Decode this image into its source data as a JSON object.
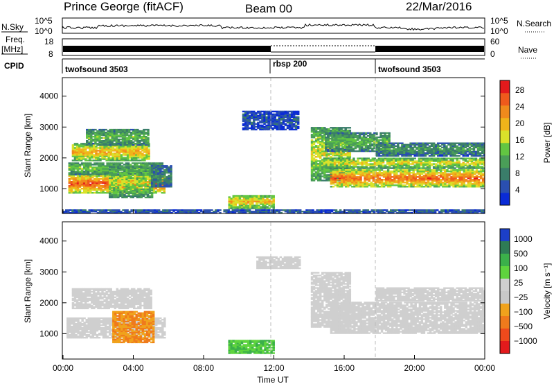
{
  "header": {
    "title": "Prince George (fitACF)",
    "beam": "Beam 00",
    "date": "22/Mar/2016"
  },
  "top_panels": {
    "nsky_label": "N.Sky",
    "nsky_ticks": [
      "10^5",
      "10^0"
    ],
    "nsearch_label": "N.Search",
    "freq_label": "Freq.",
    "freq_unit": "[MHz]",
    "freq_ticks": [
      "18",
      "8"
    ],
    "nave_label": "Nave",
    "nave_ticks": [
      "60",
      "0"
    ],
    "cpid_label": "CPID",
    "cpid_segments": [
      "twofsound 3503",
      "rbsp 200",
      "twofsound 3503"
    ]
  },
  "colors": {
    "power_scale": [
      "#0a2bd6",
      "#2a4fb0",
      "#3a7d6a",
      "#4a9e58",
      "#62c642",
      "#d9e22a",
      "#f0b41a",
      "#f08a1c",
      "#ef5a1c",
      "#e31a1c"
    ],
    "velocity_scale": [
      "#1c3fc7",
      "#2e7b55",
      "#3bb04a",
      "#5fd43e",
      "#cfcfcf",
      "#c8c8c8",
      "#f0a21c",
      "#ef7a1c",
      "#ee4a1c",
      "#e31a1c"
    ]
  },
  "chart_data": [
    {
      "type": "heatmap",
      "name": "power",
      "ylabel": "Slant Range [km]",
      "xlabel": "",
      "ylim": [
        200,
        4600
      ],
      "yticks": [
        1000,
        2000,
        3000,
        4000
      ],
      "xlim": [
        "00:00",
        "24:00"
      ],
      "xticks": [
        "00:00",
        "04:00",
        "08:00",
        "12:00",
        "16:00",
        "20:00",
        "00:00"
      ],
      "colorbar_label": "Power [dB]",
      "colorbar_ticks": [
        "28",
        "24",
        "20",
        "16",
        "12",
        "8",
        "4"
      ],
      "colorbar_range": [
        0,
        30
      ],
      "regions": [
        {
          "t0": 0.3,
          "t1": 5.8,
          "r0": 850,
          "r1": 1450,
          "level": 26
        },
        {
          "t0": 0.3,
          "t1": 5.6,
          "r0": 1450,
          "r1": 1850,
          "level": 14
        },
        {
          "t0": 0.5,
          "t1": 4.9,
          "r0": 1900,
          "r1": 2450,
          "level": 21
        },
        {
          "t0": 1.3,
          "t1": 4.9,
          "r0": 2400,
          "r1": 2900,
          "level": 13
        },
        {
          "t0": 2.6,
          "t1": 5.1,
          "r0": 700,
          "r1": 1700,
          "level": 16
        },
        {
          "t0": 5.0,
          "t1": 6.2,
          "r0": 1050,
          "r1": 1750,
          "level": 9
        },
        {
          "t0": 9.4,
          "t1": 12.0,
          "r0": 350,
          "r1": 800,
          "level": 20
        },
        {
          "t0": 10.2,
          "t1": 13.4,
          "r0": 2900,
          "r1": 3500,
          "level": 5
        },
        {
          "t0": 14.1,
          "t1": 16.3,
          "r0": 1250,
          "r1": 3000,
          "level": 17
        },
        {
          "t0": 15.2,
          "t1": 24.0,
          "r0": 1050,
          "r1": 1600,
          "level": 25
        },
        {
          "t0": 14.8,
          "t1": 24.0,
          "r0": 1650,
          "r1": 2000,
          "level": 18
        },
        {
          "t0": 14.9,
          "t1": 18.6,
          "r0": 2200,
          "r1": 2800,
          "level": 13
        },
        {
          "t0": 17.8,
          "t1": 24.0,
          "r0": 2050,
          "r1": 2500,
          "level": 10
        },
        {
          "t0": 0.0,
          "t1": 24.0,
          "r0": 200,
          "r1": 320,
          "level": 6
        }
      ]
    },
    {
      "type": "heatmap",
      "name": "velocity",
      "ylabel": "Slant Range [km]",
      "xlabel": "Time UT",
      "ylim": [
        200,
        4600
      ],
      "yticks": [
        1000,
        2000,
        3000,
        4000
      ],
      "xlim": [
        "00:00",
        "24:00"
      ],
      "xticks": [
        "00:00",
        "04:00",
        "08:00",
        "12:00",
        "16:00",
        "20:00",
        "00:00"
      ],
      "colorbar_label": "Velocity [m s⁻¹]",
      "colorbar_ticks": [
        "1000",
        "500",
        "100",
        "25",
        "−25",
        "−100",
        "−500",
        "−1000"
      ],
      "regions": [
        {
          "t0": 0.2,
          "t1": 5.8,
          "r0": 850,
          "r1": 1500,
          "vel": 0
        },
        {
          "t0": 0.5,
          "t1": 5.0,
          "r0": 1800,
          "r1": 2450,
          "vel": 0
        },
        {
          "t0": 2.8,
          "t1": 5.2,
          "r0": 700,
          "r1": 1700,
          "vel": -300
        },
        {
          "t0": 9.4,
          "t1": 12.0,
          "r0": 350,
          "r1": 800,
          "vel": 300
        },
        {
          "t0": 11.0,
          "t1": 13.4,
          "r0": 3100,
          "r1": 3500,
          "vel": 0
        },
        {
          "t0": 14.1,
          "t1": 16.3,
          "r0": 1200,
          "r1": 3000,
          "vel": 0
        },
        {
          "t0": 15.2,
          "t1": 24.0,
          "r0": 1000,
          "r1": 2000,
          "vel": 0
        },
        {
          "t0": 17.8,
          "t1": 24.0,
          "r0": 2050,
          "r1": 2500,
          "vel": 0
        }
      ]
    }
  ]
}
